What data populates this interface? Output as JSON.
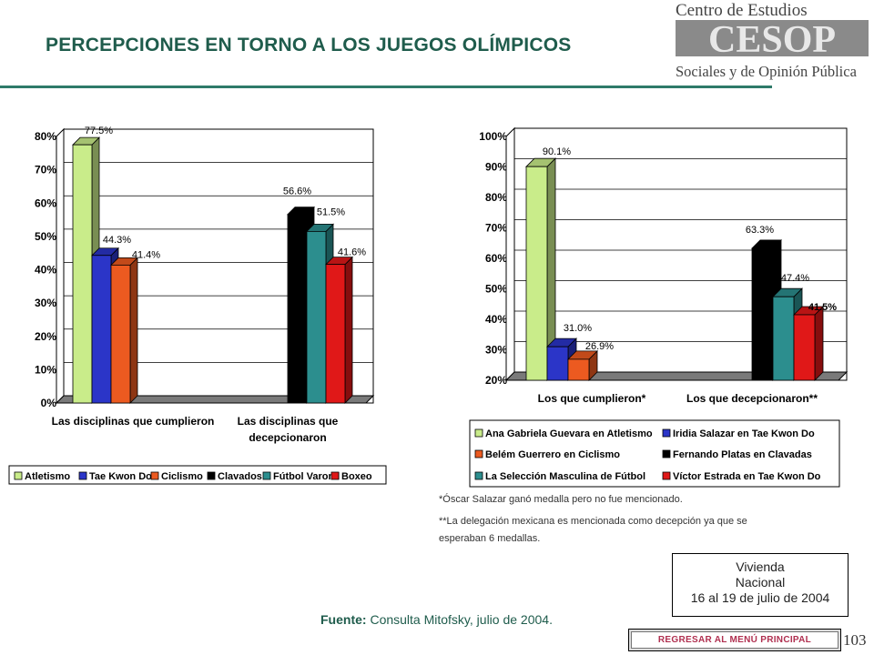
{
  "page": {
    "title": "PERCEPCIONES EN TORNO A LOS JUEGOS OLÍMPICOS",
    "page_number": "103"
  },
  "logo": {
    "line1": "Centro de Estudios",
    "mark": "CESOP",
    "line2": "Sociales y de Opinión Pública"
  },
  "notes": {
    "note1": "*Óscar Salazar ganó medalla pero no fue mencionado.",
    "note2a": "**La delegación mexicana   es mencionada como decepción ya que se",
    "note2b": "esperaban 6 medallas."
  },
  "sample_box": {
    "line1": "Vivienda",
    "line2": "Nacional",
    "line3": "16 al 19 de julio de 2004"
  },
  "source": {
    "label": "Fuente:",
    "text": " Consulta Mitofsky,  julio de 2004."
  },
  "nav": {
    "back_label": "REGRESAR AL MENÚ PRINCIPAL"
  },
  "colors": {
    "green": "#c9ec8a",
    "blue": "#2b35c8",
    "orange": "#ec5a20",
    "black": "#000000",
    "teal": "#2c8e8e",
    "red": "#e01818",
    "floor": "#7a7a7a"
  },
  "chart_data": [
    {
      "type": "bar",
      "categories": [
        "Las disciplinas que cumplieron",
        "Las disciplinas que decepcionaron"
      ],
      "category_lines": [
        [
          "Las disciplinas que cumplieron"
        ],
        [
          "Las disciplinas que",
          "decepcionaron"
        ]
      ],
      "series": [
        {
          "name": "Atletismo",
          "color": "green",
          "values": [
            77.5,
            null
          ]
        },
        {
          "name": "Tae Kwon Do",
          "color": "blue",
          "values": [
            44.3,
            null
          ]
        },
        {
          "name": "Ciclismo",
          "color": "orange",
          "values": [
            41.4,
            null
          ]
        },
        {
          "name": "Clavados",
          "color": "black",
          "values": [
            null,
            56.6
          ]
        },
        {
          "name": "Fútbol Varonil",
          "color": "teal",
          "values": [
            null,
            51.5
          ]
        },
        {
          "name": "Boxeo",
          "color": "red",
          "values": [
            null,
            41.6
          ]
        }
      ],
      "data_labels": [
        "77.5%",
        "44.3%",
        "41.4%",
        "56.6%",
        "51.5%",
        "41.6%"
      ],
      "yticks": [
        "0%",
        "10%",
        "20%",
        "30%",
        "40%",
        "50%",
        "60%",
        "70%",
        "80%"
      ],
      "ylim": [
        0,
        80
      ],
      "legend_position": "bottom"
    },
    {
      "type": "bar",
      "categories": [
        "Los que cumplieron*",
        "Los que decepcionaron**"
      ],
      "category_lines": [
        [
          "Los que cumplieron*"
        ],
        [
          "Los que decepcionaron**"
        ]
      ],
      "series": [
        {
          "name": "Ana Gabriela Guevara en Atletismo",
          "color": "green",
          "values": [
            90.1,
            null
          ]
        },
        {
          "name": "Iridia Salazar en Tae Kwon Do",
          "color": "blue",
          "values": [
            31.0,
            null
          ]
        },
        {
          "name": "Belém Guerrero en Ciclismo",
          "color": "orange",
          "values": [
            26.9,
            null
          ]
        },
        {
          "name": "Fernando Platas en Clavadas",
          "color": "black",
          "values": [
            null,
            63.3
          ]
        },
        {
          "name": "La Selección Masculina de Fútbol",
          "color": "teal",
          "values": [
            null,
            47.4
          ]
        },
        {
          "name": "Víctor Estrada en Tae Kwon Do",
          "color": "red",
          "values": [
            null,
            41.5
          ]
        }
      ],
      "data_labels": [
        "90.1%",
        "31.0%",
        "26.9%",
        "63.3%",
        "47.4%",
        "41.5%"
      ],
      "yticks": [
        "20%",
        "30%",
        "40%",
        "50%",
        "60%",
        "70%",
        "80%",
        "90%",
        "100%"
      ],
      "ylim": [
        20,
        100
      ],
      "legend_position": "bottom"
    }
  ]
}
